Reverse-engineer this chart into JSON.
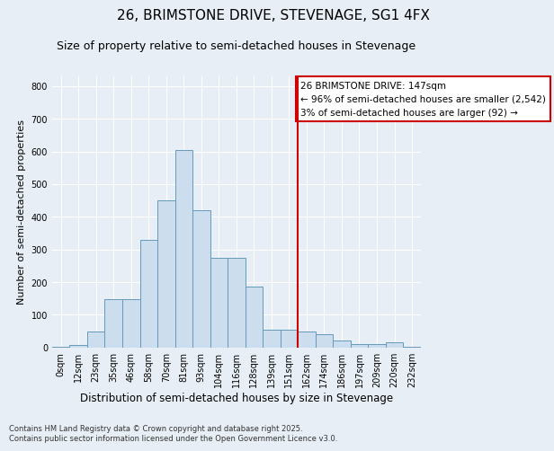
{
  "title": "26, BRIMSTONE DRIVE, STEVENAGE, SG1 4FX",
  "subtitle": "Size of property relative to semi-detached houses in Stevenage",
  "xlabel": "Distribution of semi-detached houses by size in Stevenage",
  "ylabel": "Number of semi-detached properties",
  "bins": [
    "0sqm",
    "12sqm",
    "23sqm",
    "35sqm",
    "46sqm",
    "58sqm",
    "70sqm",
    "81sqm",
    "93sqm",
    "104sqm",
    "116sqm",
    "128sqm",
    "139sqm",
    "151sqm",
    "162sqm",
    "174sqm",
    "186sqm",
    "197sqm",
    "209sqm",
    "220sqm",
    "232sqm"
  ],
  "bar_heights": [
    2,
    8,
    50,
    148,
    148,
    330,
    450,
    605,
    420,
    275,
    275,
    185,
    55,
    55,
    50,
    40,
    20,
    10,
    10,
    15,
    2
  ],
  "bar_color": "#ccdded",
  "bar_edge_color": "#6699bb",
  "vline_x": 13.5,
  "vline_color": "#cc0000",
  "annotation_text": "26 BRIMSTONE DRIVE: 147sqm\n← 96% of semi-detached houses are smaller (2,542)\n3% of semi-detached houses are larger (92) →",
  "annotation_box_facecolor": "#ffffff",
  "annotation_box_edgecolor": "#cc0000",
  "ylim": [
    0,
    830
  ],
  "yticks": [
    0,
    100,
    200,
    300,
    400,
    500,
    600,
    700,
    800
  ],
  "bg_color": "#e8eef5",
  "grid_color": "#ffffff",
  "footnote": "Contains HM Land Registry data © Crown copyright and database right 2025.\nContains public sector information licensed under the Open Government Licence v3.0.",
  "title_fontsize": 11,
  "subtitle_fontsize": 9,
  "xlabel_fontsize": 8.5,
  "ylabel_fontsize": 8,
  "tick_fontsize": 7,
  "annot_fontsize": 7.5,
  "footnote_fontsize": 6
}
